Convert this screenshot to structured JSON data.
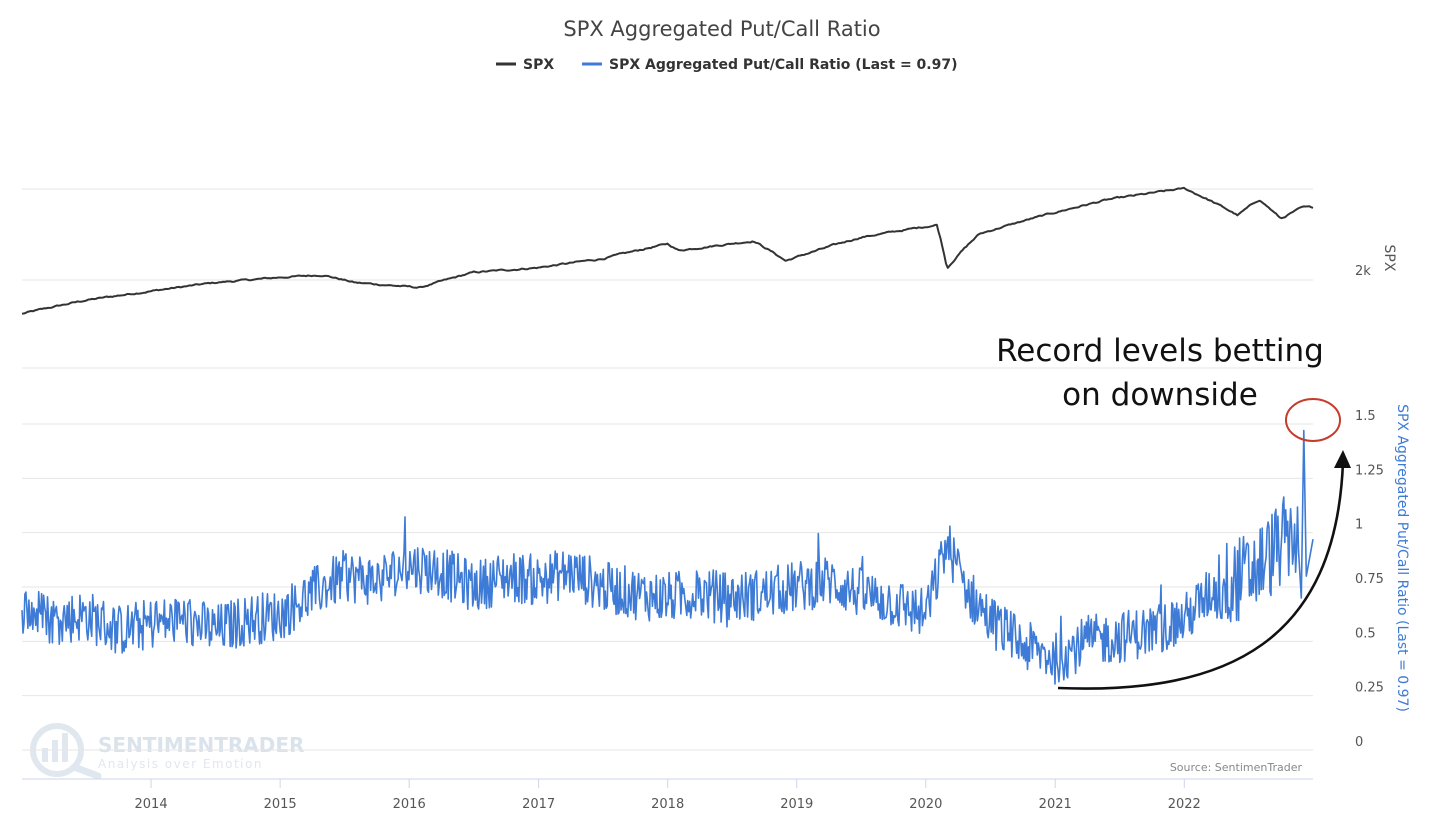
{
  "colors": {
    "spx": "#333333",
    "ratio": "#3d7bd6",
    "annotation_circle": "#c43d2d",
    "grid": "#e6e6e6"
  },
  "watermark": {
    "name": "SENTIMENTRADER",
    "tagline": "Analysis over Emotion",
    "icon": "magnifier-logo-icon"
  },
  "source_note": "Source: SentimenTrader",
  "annotation": {
    "lines": [
      "Record levels betting",
      "on downside"
    ],
    "icon": "curved-arrow-icon"
  },
  "chart_data": {
    "type": "line",
    "title": "SPX Aggregated Put/Call Ratio",
    "legend": {
      "placement": "top-center",
      "entries": [
        "SPX",
        "SPX Aggregated Put/Call Ratio (Last = 0.97)"
      ]
    },
    "grid": true,
    "x_range": [
      "2013-01-01",
      "2022-12-31"
    ],
    "x_ticks": [
      "2014",
      "2015",
      "2016",
      "2017",
      "2018",
      "2019",
      "2020",
      "2021",
      "2022"
    ],
    "series": [
      {
        "name": "SPX",
        "axis": "upper",
        "axis_title": "SPX",
        "scale": "log",
        "ticks": [
          "2k"
        ],
        "x": [
          "2013-01",
          "2013-07",
          "2014-01",
          "2014-07",
          "2015-01",
          "2015-05",
          "2015-08",
          "2016-02",
          "2016-07",
          "2017-01",
          "2017-07",
          "2018-01",
          "2018-02",
          "2018-09",
          "2018-12",
          "2019-07",
          "2020-02",
          "2020-03",
          "2020-06",
          "2020-12",
          "2021-06",
          "2022-01",
          "2022-06",
          "2022-08",
          "2022-10",
          "2022-12"
        ],
        "y": [
          1450,
          1650,
          1800,
          1950,
          2050,
          2100,
          1950,
          1860,
          2150,
          2250,
          2450,
          2820,
          2650,
          2900,
          2400,
          3000,
          3380,
          2240,
          3100,
          3700,
          4300,
          4780,
          3700,
          4300,
          3580,
          3990
        ]
      },
      {
        "name": "SPX Aggregated Put/Call Ratio (Last = 0.97)",
        "axis": "lower",
        "axis_title": "SPX Aggregated Put/Call Ratio (Last = 0.97)",
        "ylim": [
          0,
          1.5
        ],
        "ticks": [
          "0",
          "0.25",
          "0.5",
          "0.75",
          "1",
          "1.25",
          "1.5"
        ],
        "x": [
          "2013-01",
          "2013-04",
          "2013-07",
          "2013-10",
          "2014-01",
          "2014-04",
          "2014-07",
          "2014-10",
          "2015-01",
          "2015-04",
          "2015-07",
          "2015-10",
          "2016-01",
          "2016-04",
          "2016-07",
          "2016-10",
          "2017-01",
          "2017-04",
          "2017-07",
          "2017-10",
          "2018-01",
          "2018-04",
          "2018-07",
          "2018-10",
          "2019-01",
          "2019-04",
          "2019-07",
          "2019-10",
          "2020-01",
          "2020-03",
          "2020-05",
          "2020-07",
          "2020-10",
          "2021-01",
          "2021-04",
          "2021-07",
          "2021-10",
          "2022-01",
          "2022-04",
          "2022-07",
          "2022-09",
          "2022-11",
          "2022-12"
        ],
        "y": [
          0.65,
          0.6,
          0.62,
          0.55,
          0.58,
          0.6,
          0.55,
          0.6,
          0.62,
          0.72,
          0.8,
          0.78,
          0.85,
          0.82,
          0.75,
          0.8,
          0.78,
          0.82,
          0.75,
          0.72,
          0.7,
          0.72,
          0.7,
          0.72,
          0.75,
          0.78,
          0.72,
          0.68,
          0.62,
          0.95,
          0.72,
          0.6,
          0.48,
          0.42,
          0.5,
          0.52,
          0.55,
          0.6,
          0.75,
          0.8,
          0.9,
          1.0,
          0.97
        ]
      }
    ]
  }
}
